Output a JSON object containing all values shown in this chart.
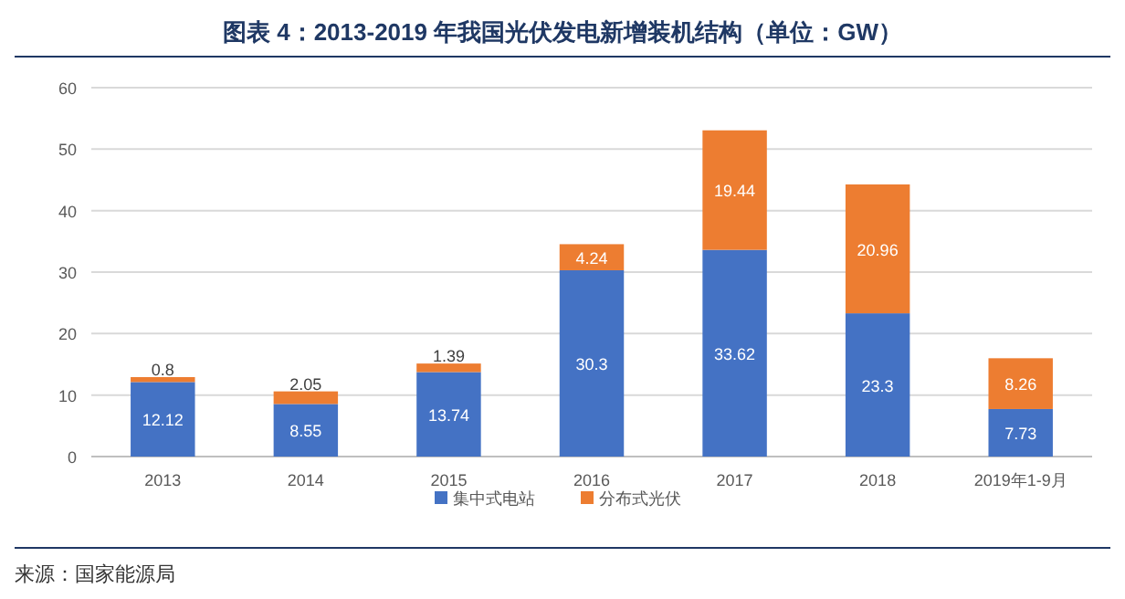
{
  "chart_data": {
    "type": "bar",
    "title": "图表 4：2013-2019 年我国光伏发电新增装机结构（单位：GW）",
    "stacked": true,
    "categories": [
      "2013",
      "2014",
      "2015",
      "2016",
      "2017",
      "2018",
      "2019年1-9月"
    ],
    "series": [
      {
        "name": "集中式电站",
        "color": "#4472c4",
        "values": [
          12.12,
          8.55,
          13.74,
          30.3,
          33.62,
          23.3,
          7.73
        ]
      },
      {
        "name": "分布式光伏",
        "color": "#ed7d31",
        "values": [
          0.8,
          2.05,
          1.39,
          4.24,
          19.44,
          20.96,
          8.26
        ]
      }
    ],
    "ylim": [
      0,
      60
    ],
    "yticks": [
      0,
      10,
      20,
      30,
      40,
      50,
      60
    ],
    "grid": "y",
    "legend": "bottom",
    "data_labels": true,
    "annotations": [
      "来源：国家能源局"
    ]
  }
}
